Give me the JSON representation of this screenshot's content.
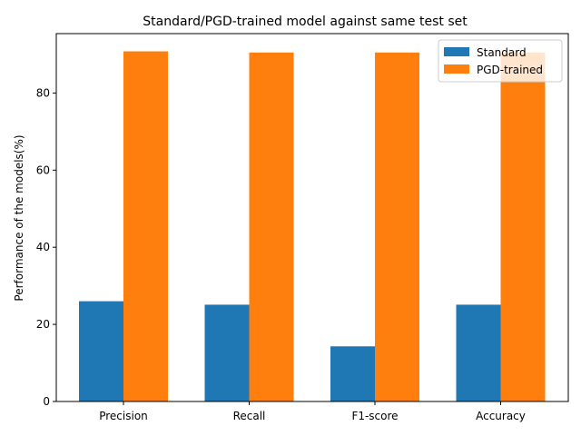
{
  "chart_data": {
    "type": "bar",
    "title": "Standard/PGD-trained model against same test set",
    "xlabel": "",
    "ylabel": "Performance of the models(%)",
    "categories": [
      "Precision",
      "Recall",
      "F1-score",
      "Accuracy"
    ],
    "series": [
      {
        "name": "Standard",
        "color": "#1f77b4",
        "values": [
          26.0,
          25.1,
          14.3,
          25.1
        ]
      },
      {
        "name": "PGD-trained",
        "color": "#ff7f0e",
        "values": [
          90.8,
          90.5,
          90.5,
          90.5
        ]
      }
    ],
    "ylim": [
      0,
      95.4
    ],
    "yticks": [
      0,
      20,
      40,
      60,
      80
    ],
    "grid": false,
    "legend_position": "top-right"
  }
}
